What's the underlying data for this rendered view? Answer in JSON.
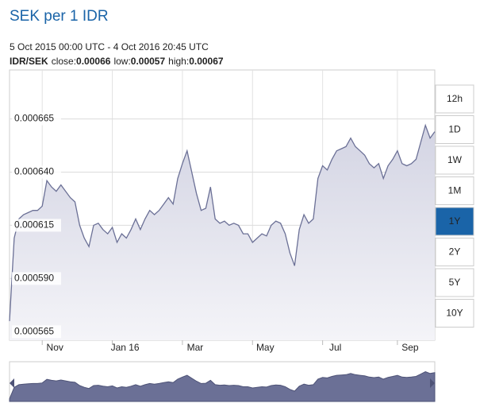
{
  "chart_data": {
    "type": "area",
    "title": "SEK per 1 IDR",
    "subtitle": "5 Oct 2015 00:00 UTC - 4 Oct 2016 20:45 UTC",
    "pair": "IDR/SEK",
    "stats": [
      {
        "label": "close:",
        "value": 0.00066
      },
      {
        "label": "low:",
        "value": 0.00057
      },
      {
        "label": "high:",
        "value": 0.00067
      }
    ],
    "categories": [
      null,
      null,
      null,
      null,
      null,
      null,
      null,
      "Nov",
      null,
      null,
      null,
      null,
      null,
      null,
      null,
      null,
      null,
      null,
      null,
      null,
      null,
      null,
      "Jan 16",
      null,
      null,
      null,
      null,
      null,
      null,
      null,
      null,
      null,
      null,
      null,
      null,
      null,
      null,
      "Mar",
      null,
      null,
      null,
      null,
      null,
      null,
      null,
      null,
      null,
      null,
      null,
      null,
      null,
      null,
      "May",
      null,
      null,
      null,
      null,
      null,
      null,
      null,
      null,
      null,
      null,
      null,
      null,
      null,
      null,
      "Jul",
      null,
      null,
      null,
      null,
      null,
      null,
      null,
      null,
      null,
      null,
      null,
      null,
      null,
      null,
      null,
      "Sep",
      null,
      null,
      null,
      null,
      null,
      null,
      null,
      null
    ],
    "series": [
      {
        "color": "#6b7096",
        "values": [
          0.00057,
          0.000609,
          0.000618,
          0.00062,
          0.000621,
          0.000622,
          0.000622,
          0.000624,
          0.000636,
          0.000633,
          0.000631,
          0.000634,
          0.000631,
          0.000628,
          0.000626,
          0.000615,
          0.000609,
          0.000605,
          0.000615,
          0.000616,
          0.000613,
          0.000611,
          0.000614,
          0.000607,
          0.000611,
          0.000609,
          0.000613,
          0.000618,
          0.000613,
          0.000618,
          0.000622,
          0.00062,
          0.000622,
          0.000625,
          0.000628,
          0.000625,
          0.000637,
          0.000644,
          0.00065,
          0.00064,
          0.00063,
          0.000622,
          0.000623,
          0.000633,
          0.000618,
          0.000616,
          0.000617,
          0.000615,
          0.000616,
          0.000615,
          0.000611,
          0.000611,
          0.000607,
          0.000609,
          0.000611,
          0.00061,
          0.000615,
          0.000617,
          0.000616,
          0.000611,
          0.000602,
          0.000596,
          0.000613,
          0.00062,
          0.000616,
          0.000618,
          0.000637,
          0.000643,
          0.000641,
          0.000646,
          0.00065,
          0.000651,
          0.000652,
          0.000656,
          0.000652,
          0.00065,
          0.000648,
          0.000644,
          0.000642,
          0.000644,
          0.000637,
          0.000643,
          0.000646,
          0.00065,
          0.000644,
          0.000643,
          0.000644,
          0.000646,
          0.000654,
          0.000662,
          0.000656,
          0.000659
        ]
      }
    ],
    "ylim": [
      0.000561,
      0.000688
    ],
    "yticks": [
      {
        "value": 0.000565,
        "label": "0.000565"
      },
      {
        "value": 0.00059,
        "label": "0.000590"
      },
      {
        "value": 0.000615,
        "label": "0.000615"
      },
      {
        "value": 0.00064,
        "label": "0.000640"
      },
      {
        "value": 0.000665,
        "label": "0.000665"
      }
    ],
    "grid": true,
    "ranges": [
      "12h",
      "1D",
      "1W",
      "1M",
      "1Y",
      "2Y",
      "5Y",
      "10Y"
    ],
    "active_range": "1Y"
  }
}
